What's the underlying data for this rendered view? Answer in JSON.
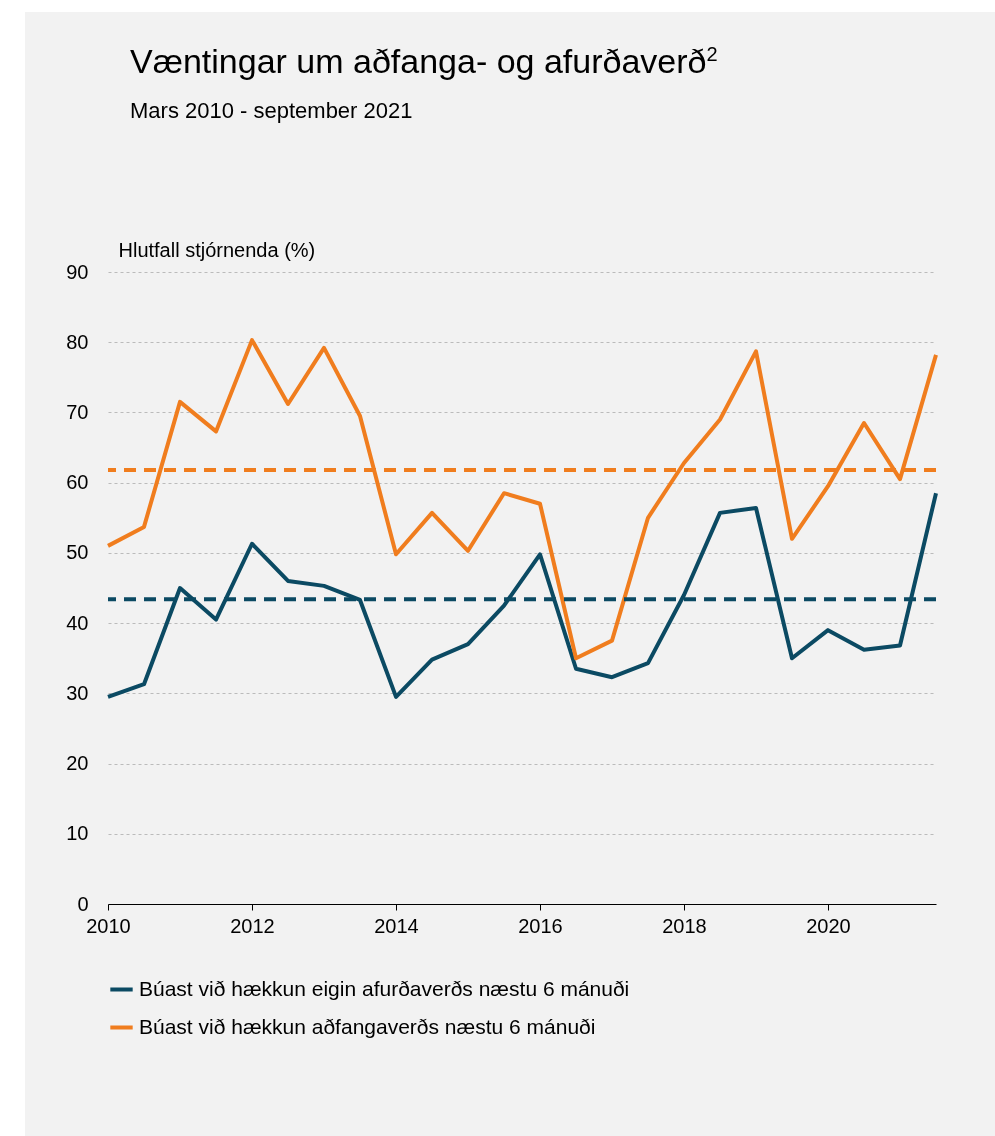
{
  "chart_data": {
    "type": "line",
    "title": "Væntingar um aðfanga- og afurðaverð$^{2}$",
    "subtitle": "Mars 2010 - september 2021",
    "ylabel": "Hlutfall stjórnenda (%)",
    "x": [
      2010,
      2010.5,
      2011,
      2011.5,
      2012,
      2012.5,
      2013,
      2013.5,
      2014,
      2014.5,
      2015,
      2015.5,
      2016,
      2016.5,
      2017,
      2017.5,
      2018,
      2018.5,
      2019,
      2019.5,
      2020,
      2020.5,
      2021,
      2021.5
    ],
    "series": [
      {
        "name": "Búast við hækkun eigin afurðaverðs næstu 6 mánuði",
        "color": "#0b4a63",
        "values": [
          29.5,
          31.3,
          45,
          40.5,
          51.3,
          46,
          45.3,
          43.3,
          29.5,
          34.8,
          37,
          42.5,
          49.8,
          33.5,
          32.3,
          34.3,
          44,
          55.7,
          56.4,
          35,
          39,
          36.2,
          36.8,
          58.5
        ]
      },
      {
        "name": "Búast við hækkun aðfangaverðs næstu 6 mánuði",
        "color": "#f07d1e",
        "values": [
          51,
          53.7,
          71.5,
          67.3,
          80.3,
          71.2,
          79.2,
          69.5,
          49.8,
          55.7,
          50.3,
          58.5,
          57,
          35,
          37.5,
          55,
          62.8,
          69,
          78.7,
          52,
          59.5,
          68.5,
          60.5,
          78.2
        ]
      }
    ],
    "ref_lines": [
      {
        "axis": "y",
        "value": 43.4,
        "color": "#0b4a63",
        "line_style": "dashed"
      },
      {
        "axis": "y",
        "value": 61.8,
        "color": "#f07d1e",
        "line_style": "dashed"
      }
    ],
    "xlim": [
      2010,
      2021.5
    ],
    "xticks": [
      2010,
      2012,
      2014,
      2016,
      2018,
      2020
    ],
    "ylim": [
      0,
      90
    ],
    "yticks": [
      0,
      10,
      20,
      30,
      40,
      50,
      60,
      70,
      80,
      90
    ],
    "grid": "y",
    "legend": "bottom",
    "line_style": "solid"
  }
}
